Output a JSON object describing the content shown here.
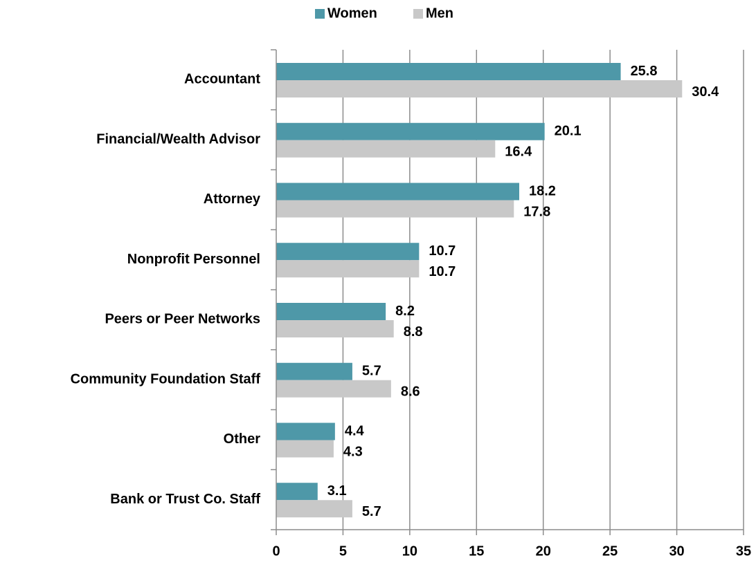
{
  "chart_data": {
    "type": "hbar",
    "categories": [
      "Accountant",
      "Financial/Wealth Advisor",
      "Attorney",
      "Nonprofit Personnel",
      "Peers or Peer Networks",
      "Community Foundation Staff",
      "Other",
      "Bank or Trust Co. Staff"
    ],
    "series": [
      {
        "name": "Women",
        "color": "#4e98a8",
        "values": [
          25.8,
          20.1,
          18.2,
          10.7,
          8.2,
          5.7,
          4.4,
          3.1
        ]
      },
      {
        "name": "Men",
        "color": "#c8c8c8",
        "values": [
          30.4,
          16.4,
          17.8,
          10.7,
          8.8,
          8.6,
          4.3,
          5.7
        ]
      }
    ],
    "xlim": [
      0,
      35
    ],
    "xticks": [
      0,
      5,
      10,
      15,
      20,
      25,
      30,
      35
    ],
    "grid": true,
    "legend": "top"
  }
}
